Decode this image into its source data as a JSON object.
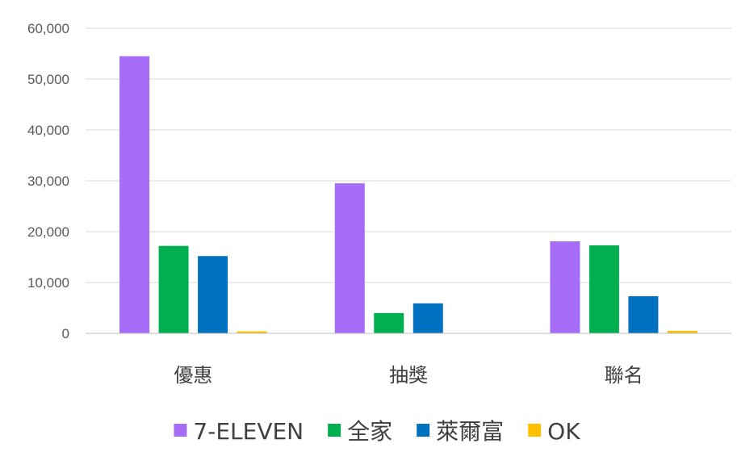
{
  "chart_data": {
    "type": "bar",
    "categories": [
      "優惠",
      "抽獎",
      "聯名"
    ],
    "series": [
      {
        "name": "7-ELEVEN",
        "color": "#a66cf7",
        "values": [
          54500,
          29500,
          18100
        ]
      },
      {
        "name": "全家",
        "color": "#00b050",
        "values": [
          17200,
          4000,
          17300
        ]
      },
      {
        "name": "萊爾富",
        "color": "#0070c0",
        "values": [
          15200,
          5900,
          7300
        ]
      },
      {
        "name": "OK",
        "color": "#ffc000",
        "values": [
          400,
          0,
          500
        ]
      }
    ],
    "ylim": [
      0,
      60000
    ],
    "yticks": [
      0,
      10000,
      20000,
      30000,
      40000,
      50000,
      60000
    ],
    "ytick_labels": [
      "0",
      "10,000",
      "20,000",
      "30,000",
      "40,000",
      "50,000",
      "60,000"
    ],
    "grid": true,
    "legend_position": "bottom",
    "title": "",
    "xlabel": "",
    "ylabel": ""
  }
}
